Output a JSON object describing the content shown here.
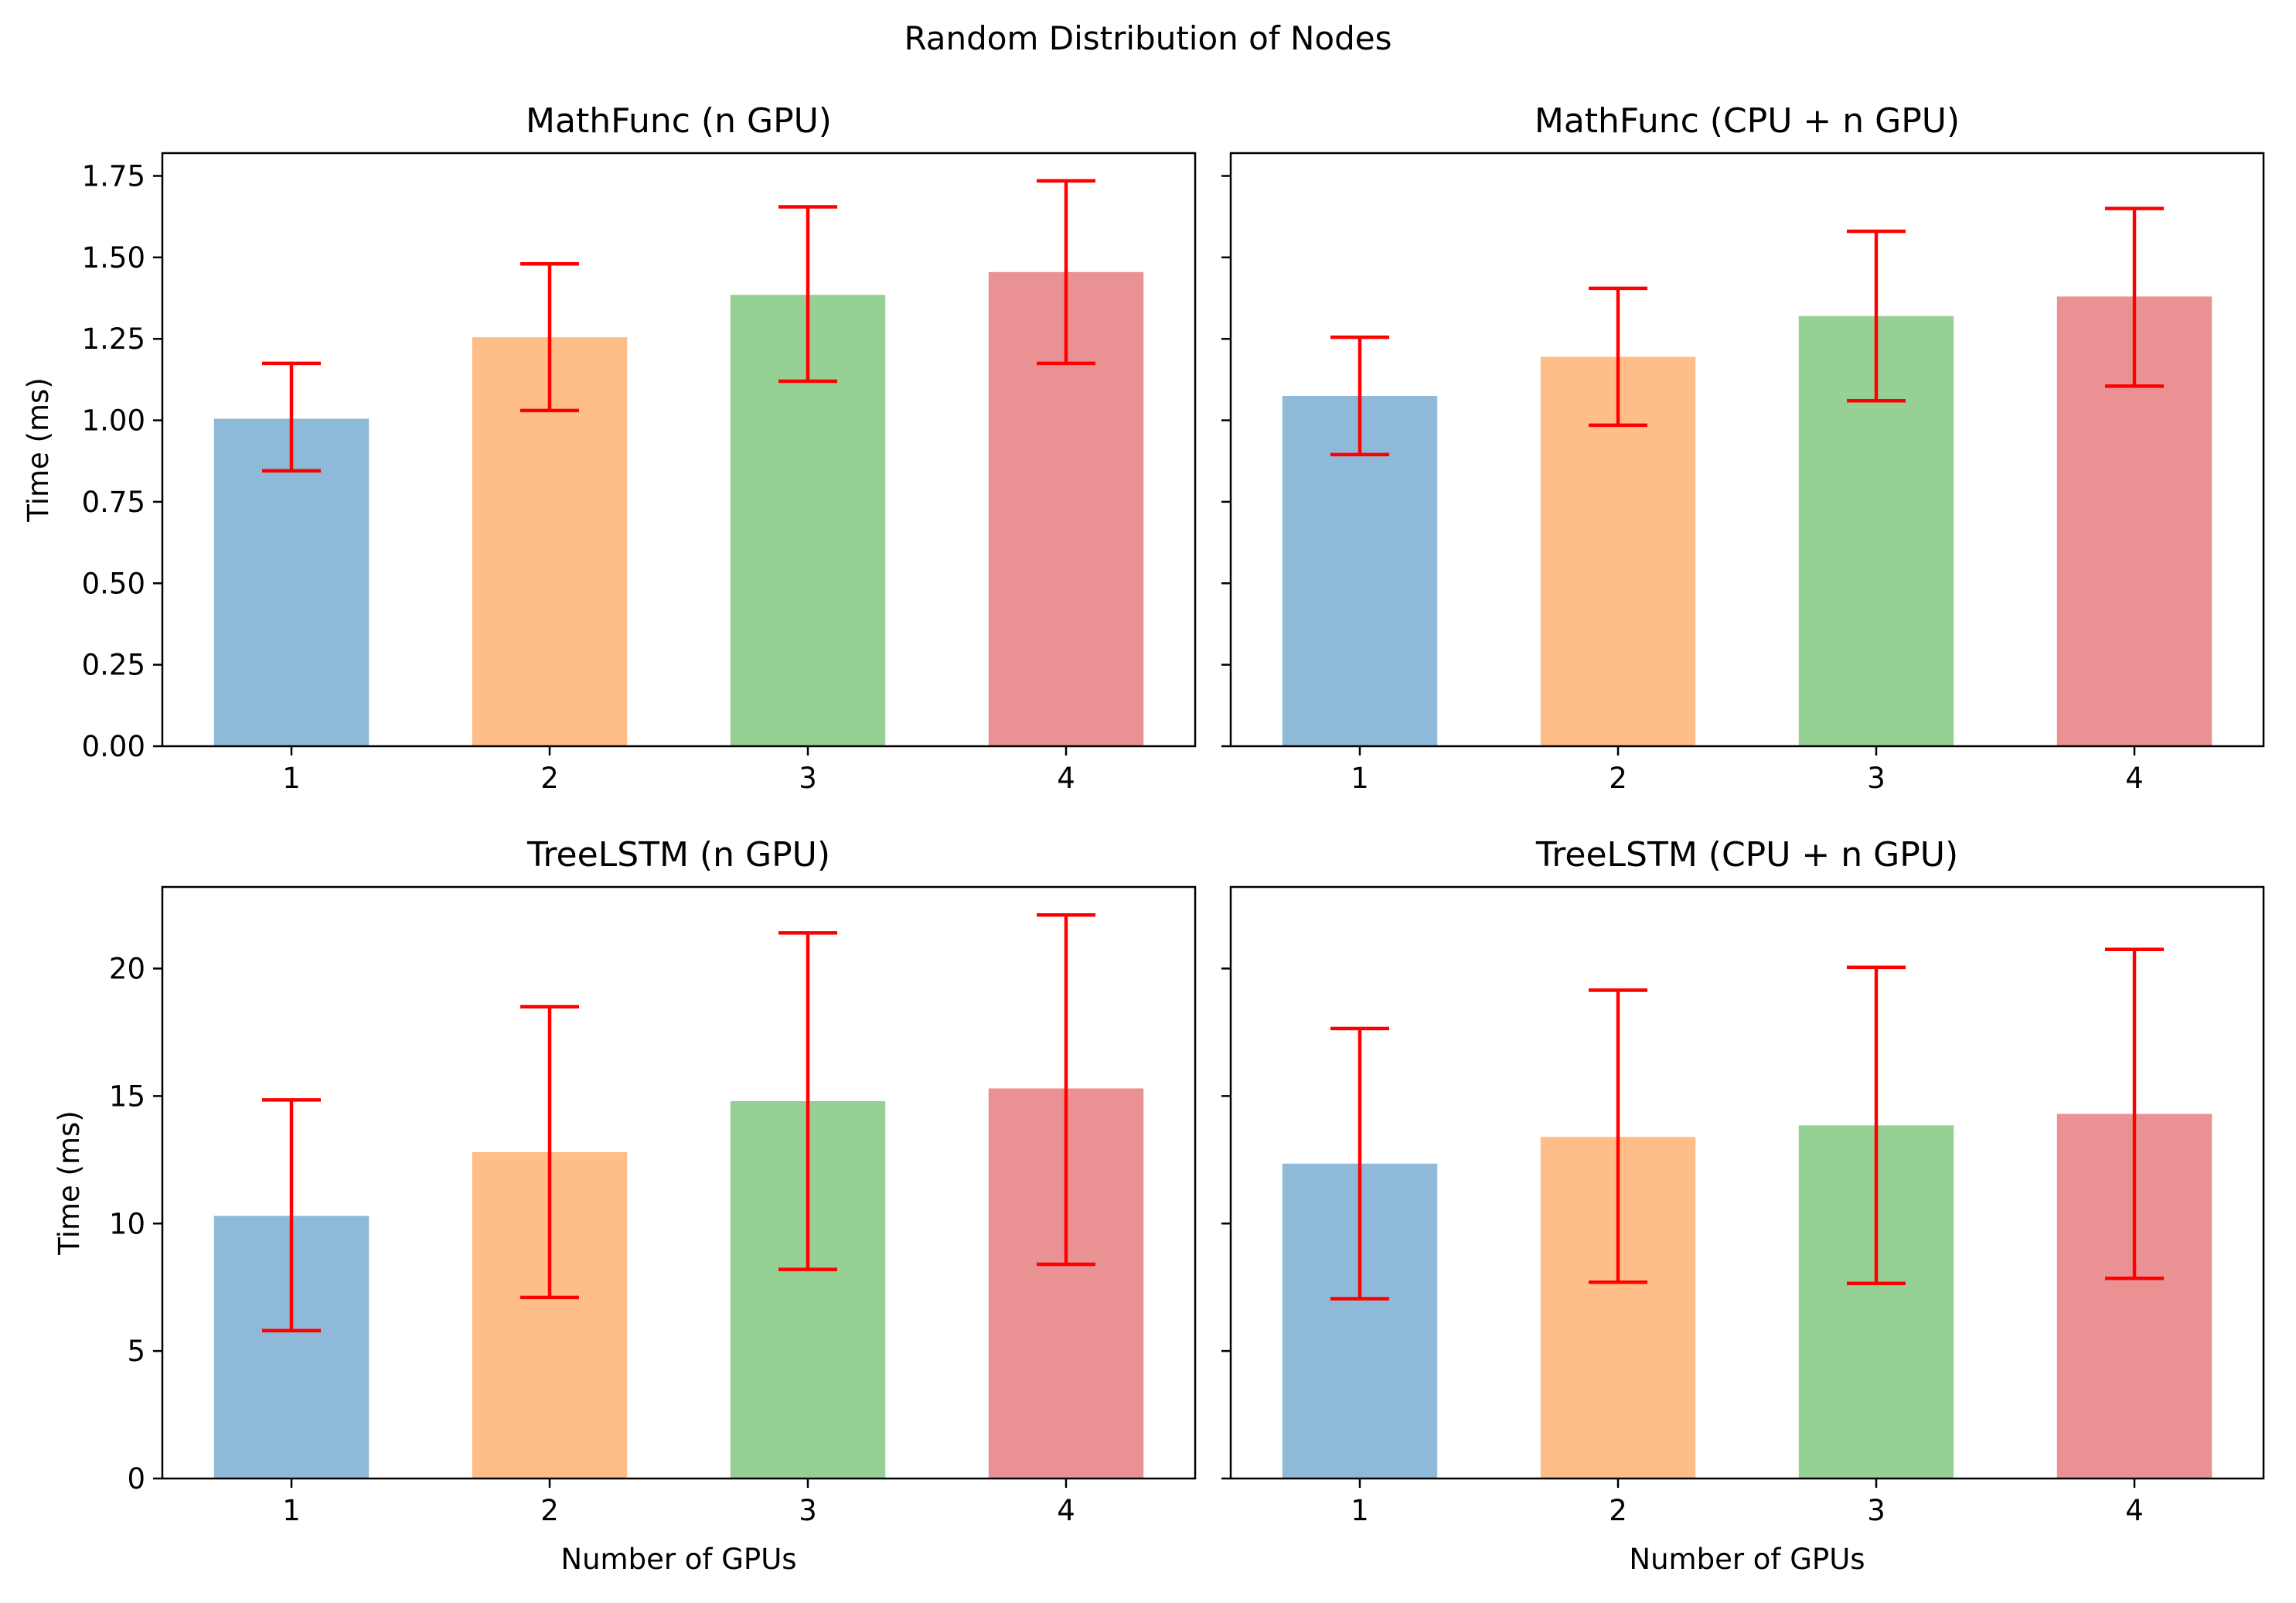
{
  "figure_title": "Random Distribution of Nodes",
  "colors": {
    "bars": [
      "#8fb9d8",
      "#ffbe87",
      "#97d095",
      "#ea9193"
    ],
    "error_bars": "#ff0000",
    "axes": "#000000"
  },
  "chart_data": [
    {
      "type": "bar",
      "title": "MathFunc (n GPU)",
      "xlabel": "",
      "ylabel": "Time (ms)",
      "categories": [
        "1",
        "2",
        "3",
        "4"
      ],
      "values": [
        1.005,
        1.255,
        1.385,
        1.455
      ],
      "error_low": [
        0.845,
        1.03,
        1.12,
        1.175
      ],
      "error_high": [
        1.175,
        1.48,
        1.655,
        1.735
      ],
      "ylim": [
        0,
        1.82
      ],
      "yticks": [
        0,
        0.25,
        0.5,
        0.75,
        1.0,
        1.25,
        1.5,
        1.75
      ],
      "ytick_labels": [
        "0.00",
        "0.25",
        "0.50",
        "0.75",
        "1.00",
        "1.25",
        "1.50",
        "1.75"
      ],
      "show_ytick_labels": true
    },
    {
      "type": "bar",
      "title": "MathFunc (CPU + n GPU)",
      "xlabel": "",
      "ylabel": "",
      "categories": [
        "1",
        "2",
        "3",
        "4"
      ],
      "values": [
        1.075,
        1.195,
        1.32,
        1.38
      ],
      "error_low": [
        0.895,
        0.985,
        1.06,
        1.105
      ],
      "error_high": [
        1.255,
        1.405,
        1.58,
        1.65
      ],
      "ylim": [
        0,
        1.82
      ],
      "yticks": [
        0,
        0.25,
        0.5,
        0.75,
        1.0,
        1.25,
        1.5,
        1.75
      ],
      "ytick_labels": [
        "0.00",
        "0.25",
        "0.50",
        "0.75",
        "1.00",
        "1.25",
        "1.50",
        "1.75"
      ],
      "show_ytick_labels": false
    },
    {
      "type": "bar",
      "title": "TreeLSTM (n GPU)",
      "xlabel": "Number of GPUs",
      "ylabel": "Time (ms)",
      "categories": [
        "1",
        "2",
        "3",
        "4"
      ],
      "values": [
        10.3,
        12.8,
        14.8,
        15.3
      ],
      "error_low": [
        5.8,
        7.1,
        8.2,
        8.4
      ],
      "error_high": [
        14.85,
        18.5,
        21.4,
        22.1
      ],
      "ylim": [
        0,
        23.2
      ],
      "yticks": [
        0,
        5,
        10,
        15,
        20
      ],
      "ytick_labels": [
        "0",
        "5",
        "10",
        "15",
        "20"
      ],
      "show_ytick_labels": true
    },
    {
      "type": "bar",
      "title": "TreeLSTM (CPU + n GPU)",
      "xlabel": "Number of GPUs",
      "ylabel": "",
      "categories": [
        "1",
        "2",
        "3",
        "4"
      ],
      "values": [
        12.35,
        13.4,
        13.85,
        14.3
      ],
      "error_low": [
        7.05,
        7.7,
        7.65,
        7.85
      ],
      "error_high": [
        17.65,
        19.15,
        20.05,
        20.75
      ],
      "ylim": [
        0,
        23.2
      ],
      "yticks": [
        0,
        5,
        10,
        15,
        20
      ],
      "ytick_labels": [
        "0",
        "5",
        "10",
        "15",
        "20"
      ],
      "show_ytick_labels": false
    }
  ]
}
